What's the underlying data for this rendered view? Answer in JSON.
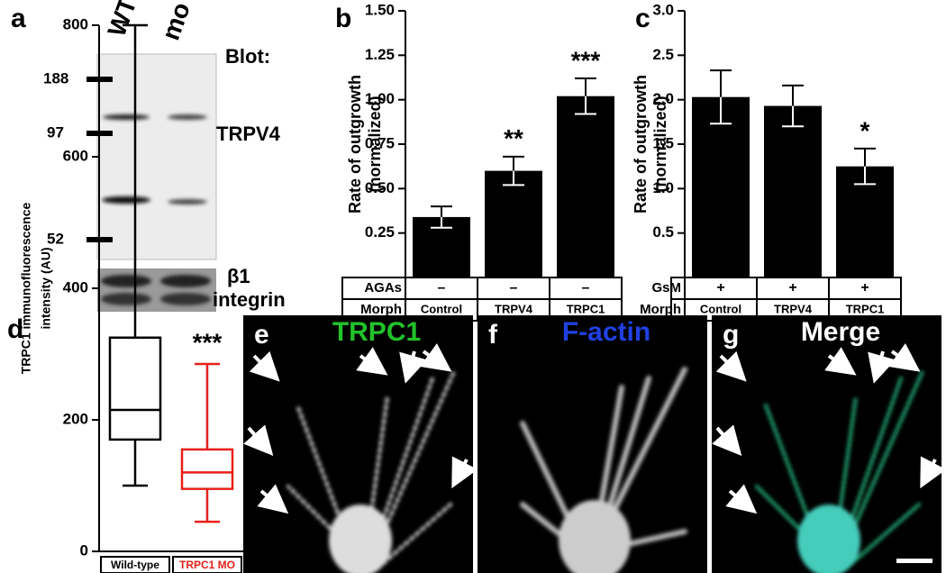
{
  "figure": {
    "panel_labels": [
      "a",
      "b",
      "c",
      "d",
      "e",
      "f",
      "g"
    ]
  },
  "blot": {
    "lanes": [
      "WT",
      "mo"
    ],
    "heading": "Blot:",
    "markers": [
      "188",
      "97",
      "52"
    ],
    "band_label": "TRPV4",
    "loading_label": [
      "β1",
      "integrin"
    ]
  },
  "chart_data": [
    {
      "type": "bar",
      "ylabel": [
        "Rate of outgrowth",
        "(normalized)"
      ],
      "categories": [
        "Control",
        "TRPV4",
        "TRPC1"
      ],
      "category_label": "Morph",
      "treatment": {
        "label": "AGAs",
        "values": [
          "–",
          "–",
          "–"
        ]
      },
      "values": [
        0.34,
        0.6,
        1.02
      ],
      "errors": [
        0.06,
        0.08,
        0.1
      ],
      "annotations": [
        null,
        "**",
        "***"
      ],
      "color": "#000000",
      "ylim": [
        0,
        1.5
      ],
      "yticks": [
        0.25,
        {
          "value": 0.5,
          "label": "0.50"
        },
        0.75,
        {
          "value": 1,
          "label": "1.00"
        },
        1.25,
        {
          "value": 1.5,
          "label": "1.50"
        }
      ]
    },
    {
      "type": "bar",
      "ylabel": [
        "Rate of outgrowth",
        "(normalized)"
      ],
      "categories": [
        "Control",
        "TRPV4",
        "TRPC1"
      ],
      "category_label": "Morph",
      "treatment": {
        "label": "GsM",
        "values": [
          "+",
          "+",
          "+"
        ]
      },
      "values": [
        2.03,
        1.93,
        1.25
      ],
      "errors": [
        0.3,
        0.23,
        0.2
      ],
      "annotations": [
        null,
        null,
        "*"
      ],
      "color": "#000000",
      "ylim": [
        0,
        3
      ],
      "yticks": [
        0.5,
        {
          "value": 1,
          "label": "1.0"
        },
        1.5,
        {
          "value": 2,
          "label": "2.0"
        },
        2.5,
        {
          "value": 3,
          "label": "3.0"
        }
      ]
    },
    {
      "type": "box",
      "ylabel": [
        "TRPC1 immunofluorescence",
        "intensity (AU)"
      ],
      "series": [
        {
          "name": "Wild-type",
          "color": "#000000",
          "min": 100,
          "q1": 170,
          "median": 215,
          "q3": 325,
          "max": 800
        },
        {
          "name": "TRPC1 MO",
          "color": "#e8201a",
          "min": 45,
          "q1": 95,
          "median": 120,
          "q3": 155,
          "max": 285
        }
      ],
      "annotations": [
        null,
        "***"
      ],
      "ylim": [
        0,
        800
      ],
      "yticks": [
        0,
        200,
        400,
        600,
        800
      ]
    }
  ],
  "images": [
    {
      "label": "TRPC1",
      "color": "#22c22a"
    },
    {
      "label": "F-actin",
      "color": "#2040e0"
    },
    {
      "label": "Merge",
      "color": "#ffffff"
    }
  ]
}
